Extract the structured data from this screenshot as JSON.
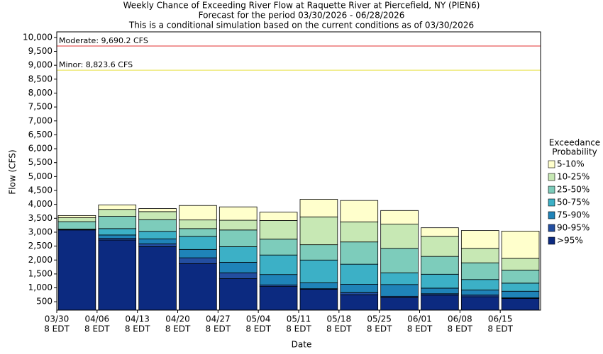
{
  "chart_data": {
    "type": "stacked_bar",
    "title_lines": [
      "Weekly Chance of Exceeding River Flow at Raquette River at Piercefield, NY (PIEN6)",
      "Forecast for the period 03/30/2026 - 06/28/2026",
      "This is a conditional simulation based on the current conditions as of 03/30/2026"
    ],
    "x_label": "Date",
    "y_label": "Flow (CFS)",
    "legend_title": [
      "Exceedance",
      "Probability"
    ],
    "categories": [
      "03/30",
      "04/06",
      "04/13",
      "04/20",
      "04/27",
      "05/04",
      "05/11",
      "05/18",
      "05/25",
      "06/01",
      "06/08",
      "06/15"
    ],
    "category_sublabels": [
      "8 EDT",
      "8 EDT",
      "8 EDT",
      "8 EDT",
      "8 EDT",
      "8 EDT",
      "8 EDT",
      "8 EDT",
      "8 EDT",
      "8 EDT",
      "8 EDT",
      "8 EDT"
    ],
    "series": [
      {
        "name": ">95%",
        "color": "#0c2a80",
        "values": [
          3080,
          2720,
          2480,
          1870,
          1330,
          1050,
          950,
          750,
          650,
          740,
          680,
          620
        ]
      },
      {
        "name": "90-95%",
        "color": "#234ea0",
        "values": [
          10,
          60,
          100,
          210,
          210,
          50,
          20,
          80,
          50,
          50,
          60,
          20
        ]
      },
      {
        "name": "75-90%",
        "color": "#1f83b8",
        "values": [
          10,
          120,
          180,
          300,
          380,
          380,
          210,
          300,
          420,
          200,
          180,
          240
        ]
      },
      {
        "name": "50-75%",
        "color": "#3cb0c6",
        "values": [
          10,
          230,
          270,
          470,
          560,
          700,
          820,
          720,
          420,
          500,
          380,
          290
        ]
      },
      {
        "name": "25-50%",
        "color": "#7dccbb",
        "values": [
          270,
          440,
          420,
          280,
          600,
          570,
          550,
          800,
          880,
          640,
          600,
          470
        ]
      },
      {
        "name": "10-25%",
        "color": "#c7e8b4",
        "values": [
          140,
          250,
          290,
          310,
          350,
          670,
          1000,
          720,
          870,
          720,
          520,
          420
        ]
      },
      {
        "name": "5-10%",
        "color": "#ffffcc",
        "values": [
          80,
          160,
          110,
          520,
          480,
          300,
          630,
          770,
          490,
          310,
          640,
          980
        ]
      }
    ],
    "thresholds": [
      {
        "label": "Moderate: 9,690.2 CFS",
        "value": 9690.2,
        "color": "#e03030"
      },
      {
        "label": "Minor: 8,823.6 CFS",
        "value": 8823.6,
        "color": "#e6e040"
      }
    ],
    "ylim": [
      200,
      10200
    ],
    "yticks": [
      500,
      {
        "value": 1000,
        "label": "1,000"
      },
      {
        "value": 1500,
        "label": "1,500"
      },
      {
        "value": 2000,
        "label": "2,000"
      },
      {
        "value": 2500,
        "label": "2,500"
      },
      {
        "value": 3000,
        "label": "3,000"
      },
      {
        "value": 3500,
        "label": "3,500"
      },
      {
        "value": 4000,
        "label": "4,000"
      },
      {
        "value": 4500,
        "label": "4,500"
      },
      {
        "value": 5000,
        "label": "5,000"
      },
      {
        "value": 5500,
        "label": "5,500"
      },
      {
        "value": 6000,
        "label": "6,000"
      },
      {
        "value": 6500,
        "label": "6,500"
      },
      {
        "value": 7000,
        "label": "7,000"
      },
      {
        "value": 7500,
        "label": "7,500"
      },
      {
        "value": 8000,
        "label": "8,000"
      },
      {
        "value": 8500,
        "label": "8,500"
      },
      {
        "value": 9000,
        "label": "9,000"
      },
      {
        "value": 9500,
        "label": "9,500"
      },
      {
        "value": 10000,
        "label": "10,000"
      }
    ],
    "legend_position": "right"
  }
}
